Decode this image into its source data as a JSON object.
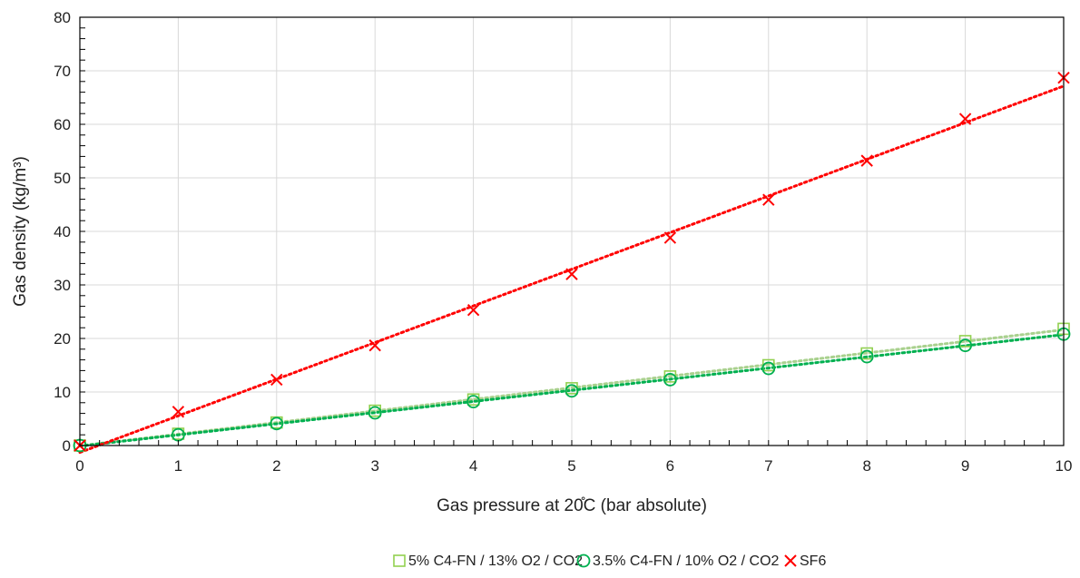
{
  "chart_data": {
    "type": "scatter",
    "xlabel": "Gas pressure at 20̊C (bar absolute)",
    "ylabel": "Gas density (kg/m³)",
    "xlim": [
      0,
      10
    ],
    "ylim": [
      0,
      80
    ],
    "xticks": [
      "0",
      "1",
      "2",
      "3",
      "4",
      "5",
      "6",
      "7",
      "8",
      "9",
      "10"
    ],
    "yticks": [
      "0",
      "10",
      "20",
      "30",
      "40",
      "50",
      "60",
      "70",
      "80"
    ],
    "grid": true,
    "legend_position": "bottom",
    "x": [
      0,
      1,
      2,
      3,
      4,
      5,
      6,
      7,
      8,
      9,
      10
    ],
    "series": [
      {
        "name": "5% C4-FN / 13% O2 / CO2",
        "marker": "square",
        "color": "#92d050",
        "trend_color": "#a9d18e",
        "values": [
          0,
          2.2,
          4.3,
          6.5,
          8.6,
          10.7,
          12.9,
          15.0,
          17.2,
          19.5,
          21.8
        ]
      },
      {
        "name": "3.5% C4-FN / 10% O2 / CO2",
        "marker": "circle",
        "color": "#00b050",
        "trend_color": "#00b050",
        "values": [
          0,
          2.0,
          4.1,
          6.1,
          8.2,
          10.2,
          12.3,
          14.4,
          16.6,
          18.7,
          20.8
        ]
      },
      {
        "name": "SF6",
        "marker": "x",
        "color": "#ff0000",
        "trend_color": "#ff0000",
        "values": [
          0,
          6.3,
          12.3,
          18.7,
          25.3,
          32.0,
          38.8,
          45.9,
          53.2,
          61.0,
          68.7
        ]
      }
    ]
  }
}
